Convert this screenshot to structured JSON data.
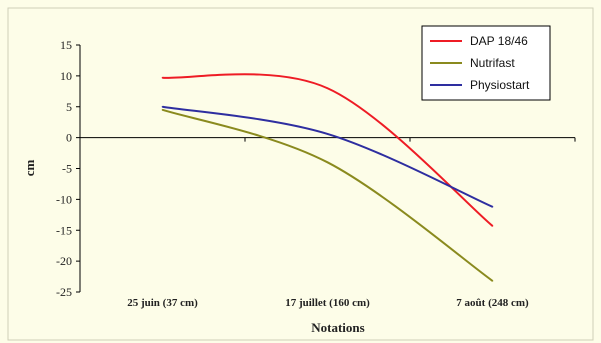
{
  "chart_data": {
    "type": "line",
    "title": "",
    "xlabel": "Notations",
    "ylabel": "cm",
    "categories": [
      "25 juin (37 cm)",
      "17 juillet (160 cm)",
      "7 août (248 cm)"
    ],
    "yticks": [
      15,
      10,
      5,
      0,
      -5,
      -10,
      -15,
      -20,
      -25
    ],
    "ylim": [
      -25,
      15
    ],
    "grid": false,
    "legend_position": "top-right",
    "series": [
      {
        "name": "DAP 18/46",
        "color": "#ee1c25",
        "values": [
          9.7,
          8.0,
          -14.3
        ]
      },
      {
        "name": "Nutrifast",
        "color": "#8a8a1e",
        "values": [
          4.5,
          -4.0,
          -23.2
        ]
      },
      {
        "name": "Physiostart",
        "color": "#2e2ea0",
        "values": [
          5.0,
          0.6,
          -11.2
        ]
      }
    ]
  }
}
